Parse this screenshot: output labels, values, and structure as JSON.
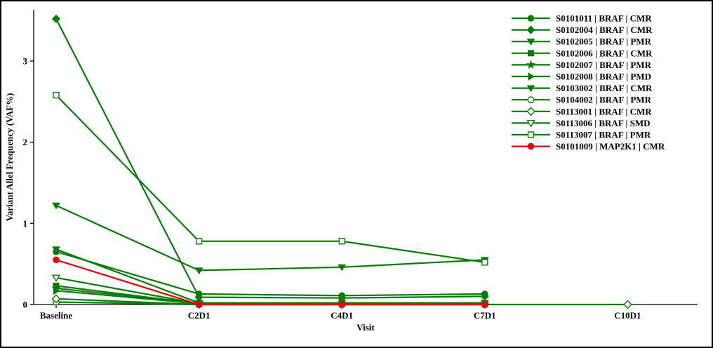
{
  "frame": {
    "background": "#ffffff",
    "border_color": "#000000"
  },
  "chart": {
    "colors": {
      "green": "#077d07",
      "red": "#e8000b",
      "axis": "#000000",
      "open_marker_fill": "#ffffff"
    }
  },
  "chart_data": {
    "type": "line",
    "title": "",
    "xlabel": "Visit",
    "ylabel": "Variant Allel Frequency (VAF%)",
    "categories": [
      "Baseline",
      "C2D1",
      "C4D1",
      "C7D1",
      "C10D1"
    ],
    "yticks": [
      0,
      1,
      2,
      3
    ],
    "ylim": [
      0,
      3.6
    ],
    "grid": false,
    "legend_position": "top-right",
    "series": [
      {
        "name": "S0101011 | BRAF | CMR",
        "marker": "circle",
        "filled": true,
        "color": "green",
        "values": [
          0.65,
          0.13,
          0.11,
          0.13,
          null
        ]
      },
      {
        "name": "S0102004 | BRAF | CMR",
        "marker": "diamond",
        "filled": true,
        "color": "green",
        "values": [
          3.52,
          0.09,
          0.08,
          0.1,
          null
        ]
      },
      {
        "name": "S0102005 | BRAF | PMR",
        "marker": "triangle-down",
        "filled": true,
        "color": "green",
        "values": [
          1.22,
          0.42,
          0.46,
          0.55,
          null
        ]
      },
      {
        "name": "S0102006 | BRAF | CMR",
        "marker": "square",
        "filled": true,
        "color": "green",
        "values": [
          0.23,
          0.01,
          0.01,
          0.01,
          null
        ]
      },
      {
        "name": "S0102007 | BRAF | PMR",
        "marker": "star",
        "filled": true,
        "color": "green",
        "values": [
          0.2,
          0.01,
          0.01,
          0.01,
          null
        ]
      },
      {
        "name": "S0102008 | BRAF | PMD",
        "marker": "triangle-right",
        "filled": true,
        "color": "green",
        "values": [
          0.17,
          0.01,
          0.01,
          0.01,
          null
        ]
      },
      {
        "name": "S0103002 | BRAF | CMR",
        "marker": "triangle-down",
        "filled": true,
        "color": "green",
        "values": [
          0.68,
          0.02,
          0.02,
          0.02,
          null
        ]
      },
      {
        "name": "S0104002 | BRAF | PMR",
        "marker": "circle",
        "filled": false,
        "color": "green",
        "values": [
          0.03,
          0.0,
          0.0,
          0.0,
          null
        ]
      },
      {
        "name": "S0113001 | BRAF | CMR",
        "marker": "diamond",
        "filled": false,
        "color": "green",
        "values": [
          0.07,
          0.0,
          0.0,
          0.0,
          0.0
        ]
      },
      {
        "name": "S0113006 | BRAF | SMD",
        "marker": "triangle-down",
        "filled": false,
        "color": "green",
        "values": [
          0.33,
          0.01,
          null,
          null,
          null
        ]
      },
      {
        "name": "S0113007 | BRAF | PMR",
        "marker": "square",
        "filled": false,
        "color": "green",
        "values": [
          2.58,
          0.78,
          0.78,
          0.52,
          null
        ]
      },
      {
        "name": "S0101009 | MAP2K1 | CMR",
        "marker": "circle",
        "filled": true,
        "color": "red",
        "values": [
          0.55,
          0.0,
          0.0,
          0.0,
          null
        ]
      }
    ]
  }
}
